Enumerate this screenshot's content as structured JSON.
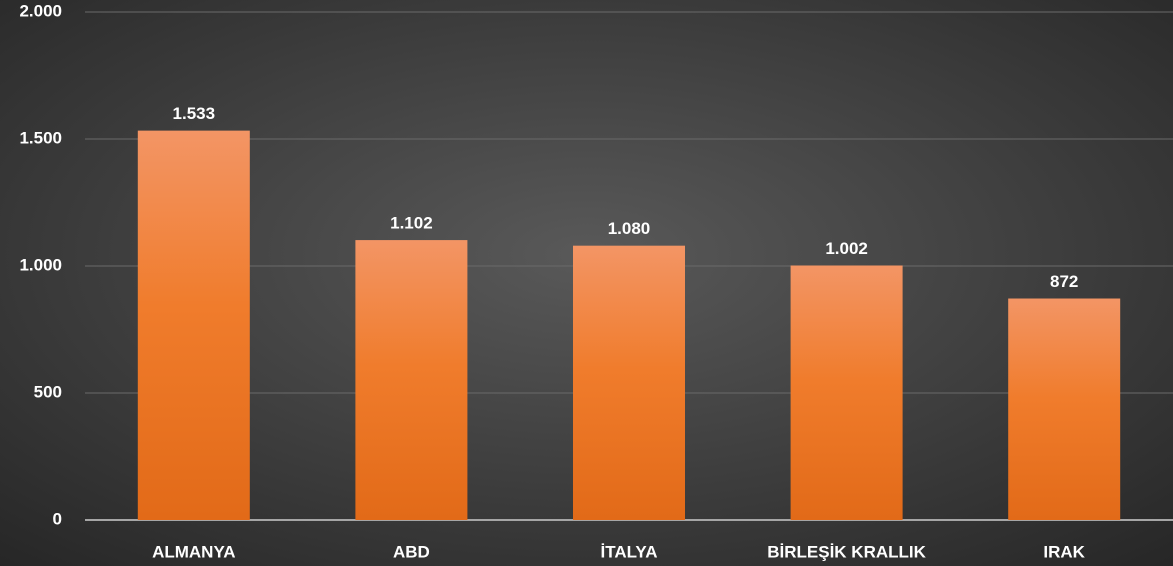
{
  "chart_data": {
    "type": "bar",
    "categories": [
      "ALMANYA",
      "ABD",
      "İTALYA",
      "BİRLEŞİK KRALLIK",
      "IRAK"
    ],
    "values": [
      1533,
      1102,
      1080,
      1002,
      872
    ],
    "value_labels": [
      "1.533",
      "1.102",
      "1.080",
      "1.002",
      "872"
    ],
    "color": "#ed7d31",
    "ylim": [
      0,
      2000
    ],
    "yticks": [
      0,
      500,
      {
        "value": 1000,
        "label": "1.000"
      },
      {
        "value": 1500,
        "label": "1.500"
      },
      {
        "value": 2000,
        "label": "2.000"
      }
    ],
    "grid": true
  }
}
